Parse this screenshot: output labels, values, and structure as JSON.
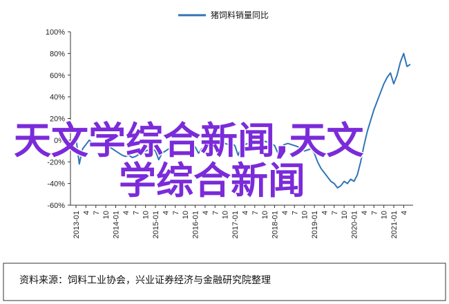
{
  "chart_data": {
    "type": "line",
    "series": [
      {
        "name": "猪饲料销量同比",
        "color": "#2e75b6",
        "points": [
          [
            "2013-01",
            2
          ],
          [
            "2013-02",
            -22
          ],
          [
            "2013-03",
            -8
          ],
          [
            "2013-04",
            -4
          ],
          [
            "2013-05",
            0
          ],
          [
            "2013-06",
            -3
          ],
          [
            "2013-07",
            -4
          ],
          [
            "2013-08",
            -6
          ],
          [
            "2013-09",
            -5
          ],
          [
            "2013-10",
            -4
          ],
          [
            "2013-11",
            -6
          ],
          [
            "2013-12",
            -8
          ],
          [
            "2014-01",
            -10
          ],
          [
            "2014-02",
            -12
          ],
          [
            "2014-03",
            -14
          ],
          [
            "2014-04",
            -15
          ],
          [
            "2014-05",
            -14
          ],
          [
            "2014-06",
            -16
          ],
          [
            "2014-07",
            -15
          ],
          [
            "2014-08",
            -13
          ],
          [
            "2014-09",
            -12
          ],
          [
            "2014-10",
            -10
          ],
          [
            "2014-11",
            -9
          ],
          [
            "2014-12",
            -8
          ],
          [
            "2015-01",
            -10
          ],
          [
            "2015-02",
            -18
          ],
          [
            "2015-03",
            -12
          ],
          [
            "2015-04",
            -10
          ],
          [
            "2015-05",
            -8
          ],
          [
            "2015-06",
            -6
          ],
          [
            "2015-07",
            -4
          ],
          [
            "2015-08",
            -3
          ],
          [
            "2015-09",
            -2
          ],
          [
            "2015-10",
            -3
          ],
          [
            "2015-11",
            -4
          ],
          [
            "2015-12",
            -5
          ],
          [
            "2016-01",
            -6
          ],
          [
            "2016-02",
            -12
          ],
          [
            "2016-03",
            -8
          ],
          [
            "2016-04",
            -6
          ],
          [
            "2016-05",
            -4
          ],
          [
            "2016-06",
            -3
          ],
          [
            "2016-07",
            -2
          ],
          [
            "2016-08",
            -1
          ],
          [
            "2016-09",
            -2
          ],
          [
            "2016-10",
            -3
          ],
          [
            "2016-11",
            -4
          ],
          [
            "2016-12",
            -3
          ],
          [
            "2017-01",
            -5
          ],
          [
            "2017-02",
            -14
          ],
          [
            "2017-03",
            -6
          ],
          [
            "2017-04",
            -4
          ],
          [
            "2017-05",
            -3
          ],
          [
            "2017-06",
            -2
          ],
          [
            "2017-07",
            -3
          ],
          [
            "2017-08",
            -4
          ],
          [
            "2017-09",
            -2
          ],
          [
            "2017-10",
            -1
          ],
          [
            "2017-11",
            -2
          ],
          [
            "2017-12",
            -3
          ],
          [
            "2018-01",
            -5
          ],
          [
            "2018-02",
            -12
          ],
          [
            "2018-03",
            -6
          ],
          [
            "2018-04",
            -4
          ],
          [
            "2018-05",
            -3
          ],
          [
            "2018-06",
            -4
          ],
          [
            "2018-07",
            -5
          ],
          [
            "2018-08",
            -6
          ],
          [
            "2018-09",
            -8
          ],
          [
            "2018-10",
            -10
          ],
          [
            "2018-11",
            -9
          ],
          [
            "2018-12",
            -8
          ],
          [
            "2019-01",
            -12
          ],
          [
            "2019-02",
            -20
          ],
          [
            "2019-03",
            -26
          ],
          [
            "2019-04",
            -30
          ],
          [
            "2019-05",
            -34
          ],
          [
            "2019-06",
            -38
          ],
          [
            "2019-07",
            -40
          ],
          [
            "2019-08",
            -44
          ],
          [
            "2019-09",
            -42
          ],
          [
            "2019-10",
            -38
          ],
          [
            "2019-11",
            -40
          ],
          [
            "2019-12",
            -36
          ],
          [
            "2020-01",
            -38
          ],
          [
            "2020-02",
            -32
          ],
          [
            "2020-03",
            -20
          ],
          [
            "2020-04",
            -5
          ],
          [
            "2020-05",
            8
          ],
          [
            "2020-06",
            18
          ],
          [
            "2020-07",
            28
          ],
          [
            "2020-08",
            36
          ],
          [
            "2020-09",
            44
          ],
          [
            "2020-10",
            52
          ],
          [
            "2020-11",
            58
          ],
          [
            "2020-12",
            62
          ],
          [
            "2021-01",
            52
          ],
          [
            "2021-02",
            60
          ],
          [
            "2021-03",
            72
          ],
          [
            "2021-04",
            80
          ],
          [
            "2021-05",
            68
          ],
          [
            "2021-06",
            70
          ]
        ]
      }
    ],
    "ylim": [
      -60,
      100
    ],
    "yticks": [
      "100%",
      "80%",
      "60%",
      "40%",
      "20%",
      "0%",
      "-20%",
      "-40%",
      "-60%"
    ],
    "ytick_values": [
      100,
      80,
      60,
      40,
      20,
      0,
      -20,
      -40,
      -60
    ],
    "xticks": [
      "2013-01",
      "2013-04",
      "2013-07",
      "2013-10",
      "2014-01",
      "2014-04",
      "2014-07",
      "2014-10",
      "2015-01",
      "2015-04",
      "2015-07",
      "2015-10",
      "2016-01",
      "2016-04",
      "2016-07",
      "2016-10",
      "2017-01",
      "2017-04",
      "2017-07",
      "2017-10",
      "2018-01",
      "2018-04",
      "2018-07",
      "2018-10",
      "2019-01",
      "2019-04",
      "2019-07",
      "2019-10",
      "2020-01",
      "2020-04",
      "2020-07",
      "2020-10",
      "2021-01",
      "2021-04"
    ],
    "xtick_labels": [
      "2013-01",
      "4",
      "7",
      "10",
      "2014-01",
      "4",
      "7",
      "10",
      "2015-01",
      "4",
      "7",
      "10",
      "2016-01",
      "4",
      "7",
      "10",
      "2017-01",
      "4",
      "7",
      "10",
      "2018-01",
      "4",
      "7",
      "10",
      "2019-01",
      "4",
      "7",
      "10",
      "2020-01",
      "4",
      "7",
      "10",
      "2021-01",
      "4"
    ],
    "xstart": "2013-01",
    "xend": "2021-06",
    "legend": {
      "label": "猪饲料销量同比",
      "placement": "top-center"
    },
    "grid": false
  },
  "source_text": "资料来源：饲料工业协会，兴业证券经济与金融研究院整理",
  "overlay_text": {
    "line1": "天文学综合新闻,天文",
    "line2": "学综合新闻"
  }
}
